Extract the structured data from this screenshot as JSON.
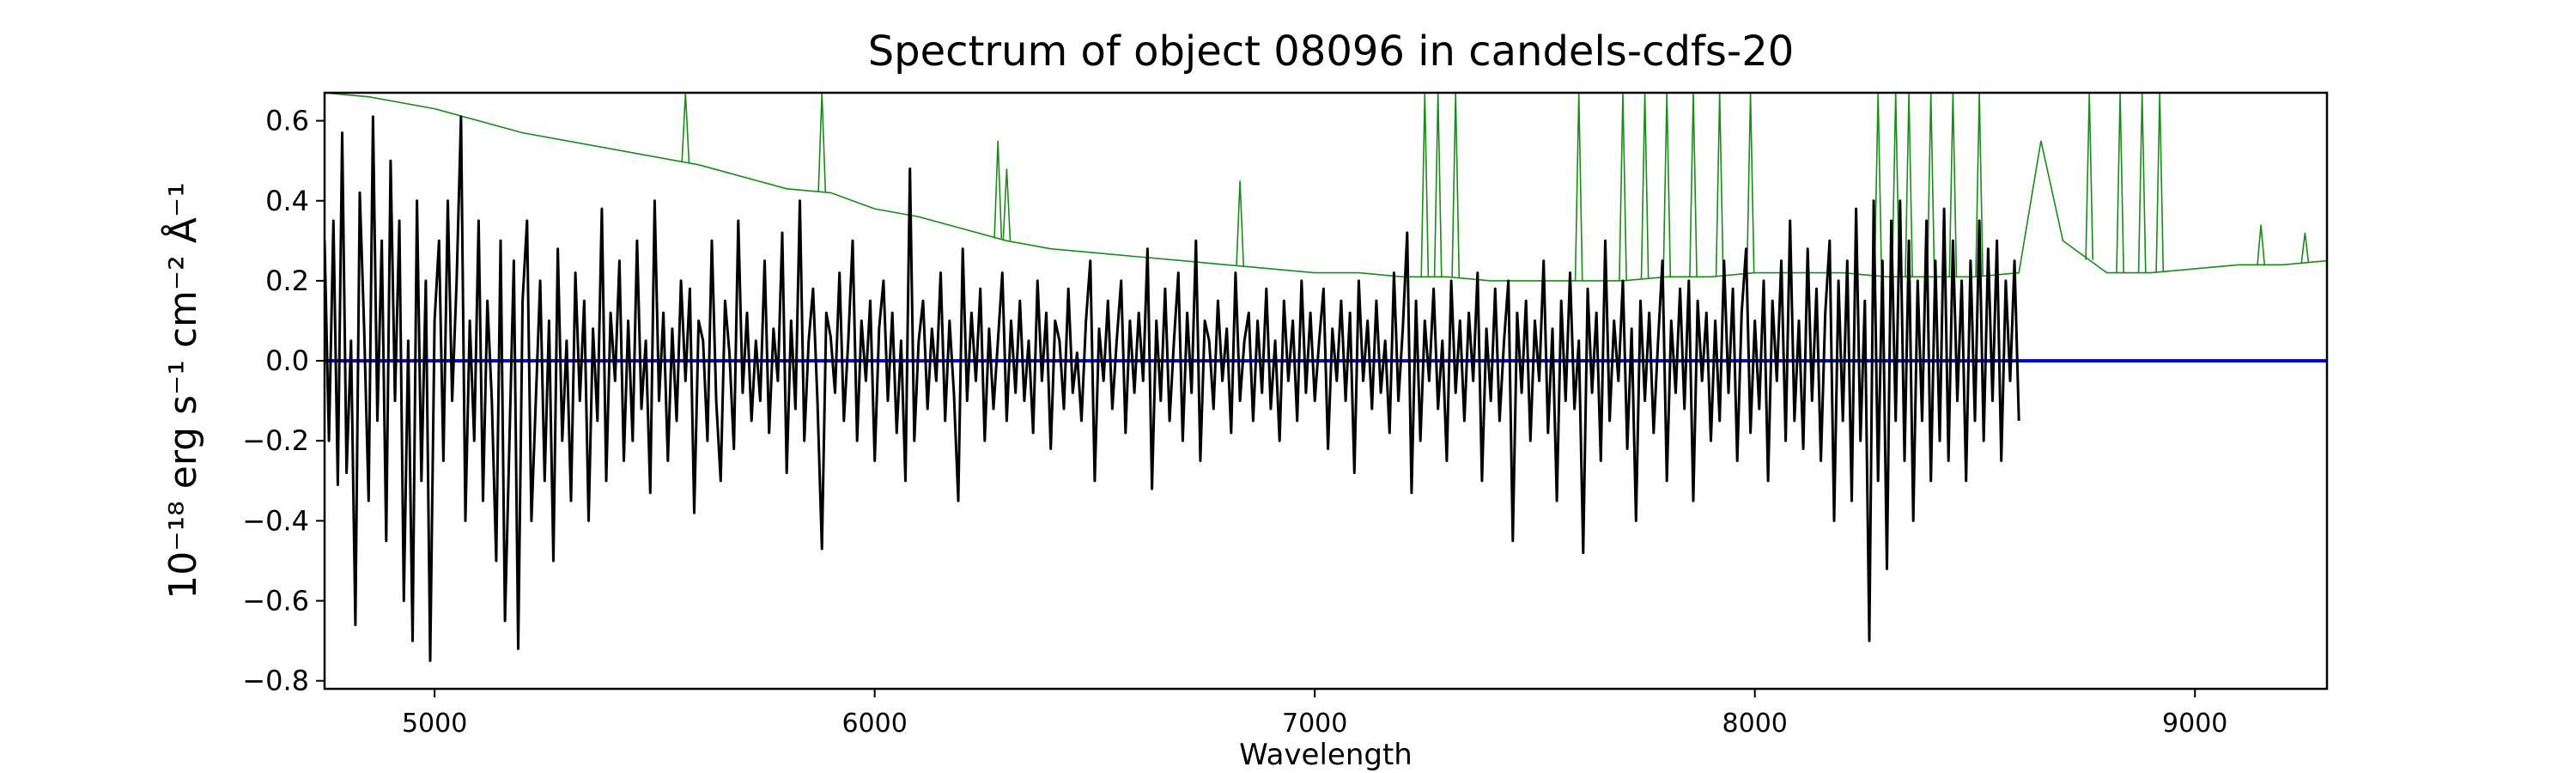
{
  "chart_data": {
    "type": "line",
    "title": "Spectrum of object 08096 in candels-cdfs-20",
    "xlabel": "Wavelength",
    "ylabel": "10⁻¹⁸ erg s⁻¹ cm⁻² Å⁻¹",
    "xlim": [
      4750,
      9300
    ],
    "ylim": [
      -0.82,
      0.67
    ],
    "x_ticks": [
      5000,
      6000,
      7000,
      8000,
      9000
    ],
    "y_ticks": [
      -0.8,
      -0.6,
      -0.4,
      -0.2,
      0.0,
      0.2,
      0.4,
      0.6
    ],
    "x_tick_labels": [
      "5000",
      "6000",
      "7000",
      "8000",
      "9000"
    ],
    "y_tick_labels": [
      "−0.8",
      "−0.6",
      "−0.4",
      "−0.2",
      "0.0",
      "0.2",
      "0.4",
      "0.6"
    ],
    "grid": false,
    "legend": "none",
    "series": [
      {
        "role": "flux",
        "color": "#000000",
        "x_start": 4750,
        "x_step": 10,
        "values": [
          0.3,
          -0.2,
          0.35,
          -0.31,
          0.57,
          -0.28,
          0.05,
          -0.66,
          0.42,
          0.08,
          -0.35,
          0.61,
          -0.15,
          0.3,
          -0.45,
          0.5,
          -0.1,
          0.35,
          -0.6,
          0.05,
          -0.7,
          0.4,
          -0.3,
          0.2,
          -0.75,
          0.1,
          0.3,
          -0.25,
          0.4,
          -0.1,
          0.2,
          0.61,
          -0.4,
          0.1,
          -0.2,
          0.35,
          -0.35,
          0.15,
          -0.1,
          -0.5,
          0.3,
          -0.65,
          -0.2,
          0.25,
          -0.72,
          0.15,
          0.35,
          -0.4,
          -0.1,
          0.2,
          -0.3,
          0.1,
          -0.5,
          0.28,
          -0.2,
          0.05,
          -0.35,
          0.22,
          -0.1,
          0.15,
          -0.4,
          0.08,
          -0.15,
          0.38,
          -0.3,
          0.12,
          -0.05,
          0.25,
          -0.25,
          0.1,
          -0.2,
          0.3,
          -0.12,
          0.05,
          -0.33,
          0.4,
          -0.1,
          0.12,
          -0.25,
          0.08,
          -0.15,
          0.2,
          -0.05,
          0.18,
          -0.38,
          0.1,
          0.05,
          -0.2,
          0.3,
          -0.1,
          -0.3,
          0.15,
          0.02,
          -0.22,
          0.35,
          -0.08,
          0.12,
          -0.15,
          0.05,
          -0.1,
          0.25,
          -0.18,
          0.08,
          -0.05,
          0.32,
          -0.28,
          0.1,
          -0.12,
          0.4,
          -0.2,
          0.05,
          0.18,
          -0.1,
          -0.47,
          0.12,
          0.06,
          -0.08,
          0.22,
          -0.15,
          0.05,
          0.3,
          -0.2,
          0.1,
          -0.05,
          0.15,
          -0.25,
          0.08,
          0.2,
          -0.1,
          0.12,
          -0.18,
          0.05,
          -0.3,
          0.48,
          -0.2,
          0.05,
          0.15,
          -0.12,
          0.08,
          -0.05,
          0.22,
          -0.15,
          0.1,
          -0.08,
          -0.35,
          0.28,
          -0.1,
          0.12,
          -0.05,
          0.18,
          -0.2,
          0.08,
          -0.12,
          0.05,
          0.22,
          -0.15,
          0.1,
          -0.08,
          0.15,
          -0.1,
          0.05,
          -0.18,
          0.2,
          -0.05,
          0.12,
          -0.22,
          0.1,
          0.05,
          -0.12,
          0.18,
          -0.08,
          0.02,
          -0.15,
          0.1,
          0.25,
          -0.3,
          0.08,
          -0.05,
          0.15,
          -0.12,
          0.05,
          0.2,
          -0.18,
          0.1,
          -0.08,
          0.12,
          -0.05,
          0.28,
          -0.32,
          0.1,
          -0.1,
          0.18,
          -0.15,
          0.05,
          0.22,
          -0.2,
          0.12,
          -0.08,
          0.3,
          -0.25,
          0.1,
          0.05,
          -0.12,
          0.15,
          -0.05,
          0.08,
          -0.18,
          0.22,
          -0.1,
          0.05,
          0.12,
          -0.15,
          0.1,
          -0.08,
          0.18,
          -0.12,
          0.05,
          -0.2,
          0.15,
          -0.05,
          0.1,
          -0.15,
          0.2,
          -0.08,
          0.12,
          -0.1,
          0.05,
          0.18,
          -0.22,
          0.08,
          -0.05,
          0.15,
          -0.1,
          0.12,
          -0.28,
          0.2,
          -0.05,
          0.1,
          -0.12,
          0.15,
          -0.08,
          0.05,
          -0.18,
          0.22,
          -0.1,
          0.08,
          0.32,
          -0.33,
          0.15,
          -0.2,
          0.1,
          -0.05,
          0.18,
          -0.12,
          0.05,
          -0.25,
          0.2,
          -0.08,
          0.1,
          -0.15,
          0.12,
          -0.05,
          0.22,
          -0.3,
          0.08,
          -0.1,
          0.18,
          -0.15,
          0.05,
          0.2,
          -0.45,
          0.12,
          -0.08,
          0.15,
          -0.2,
          0.1,
          -0.05,
          0.25,
          -0.18,
          0.08,
          -0.35,
          0.15,
          -0.1,
          0.22,
          -0.12,
          0.05,
          -0.48,
          0.18,
          -0.08,
          0.12,
          -0.25,
          0.3,
          -0.15,
          0.1,
          -0.05,
          0.2,
          -0.22,
          0.08,
          -0.4,
          0.15,
          -0.1,
          0.12,
          -0.18,
          0.05,
          0.25,
          -0.3,
          0.1,
          -0.08,
          0.18,
          -0.12,
          0.2,
          -0.35,
          0.15,
          -0.05,
          0.12,
          -0.2,
          0.1,
          -0.15,
          0.25,
          -0.08,
          0.18,
          -0.25,
          0.12,
          0.28,
          -0.18,
          0.1,
          -0.12,
          0.2,
          -0.3,
          0.15,
          -0.05,
          0.25,
          -0.2,
          0.35,
          -0.15,
          0.1,
          -0.22,
          0.28,
          -0.1,
          0.18,
          -0.25,
          0.12,
          0.3,
          -0.4,
          0.2,
          -0.15,
          0.25,
          -0.35,
          0.38,
          -0.2,
          0.15,
          -0.7,
          0.4,
          -0.3,
          0.25,
          -0.52,
          0.35,
          -0.15,
          0.4,
          -0.25,
          0.3,
          -0.4,
          0.2,
          -0.15,
          0.35,
          -0.3,
          0.25,
          -0.2,
          0.38,
          -0.25,
          0.3,
          -0.1,
          0.2,
          -0.3,
          0.25,
          -0.15,
          0.35,
          -0.2,
          0.28,
          -0.1,
          0.3,
          -0.25,
          0.2,
          -0.05,
          0.25,
          -0.15
        ],
        "min_label": "−0.75",
        "max_label": "0.61"
      },
      {
        "role": "error",
        "color": "#1a8a1a",
        "x": [
          4750,
          4850,
          5000,
          5200,
          5400,
          5550,
          5600,
          5700,
          5800,
          5900,
          6000,
          6100,
          6200,
          6300,
          6400,
          6500,
          6600,
          6700,
          6800,
          6900,
          7000,
          7100,
          7200,
          7300,
          7400,
          7500,
          7600,
          7700,
          7800,
          7900,
          8000,
          8100,
          8200,
          8300,
          8400,
          8500,
          8600,
          8650,
          8700,
          8800,
          8900,
          9000,
          9100,
          9200,
          9300
        ],
        "values": [
          0.67,
          0.66,
          0.63,
          0.57,
          0.53,
          0.5,
          0.49,
          0.46,
          0.43,
          0.42,
          0.38,
          0.36,
          0.33,
          0.3,
          0.28,
          0.27,
          0.26,
          0.25,
          0.24,
          0.23,
          0.22,
          0.22,
          0.21,
          0.21,
          0.2,
          0.2,
          0.2,
          0.2,
          0.21,
          0.21,
          0.22,
          0.22,
          0.22,
          0.21,
          0.21,
          0.21,
          0.22,
          0.55,
          0.3,
          0.22,
          0.22,
          0.23,
          0.24,
          0.24,
          0.25
        ],
        "spikes": [
          [
            5570,
            0.67
          ],
          [
            5880,
            0.67
          ],
          [
            6280,
            0.55
          ],
          [
            6300,
            0.48
          ],
          [
            6830,
            0.45
          ],
          [
            7250,
            0.67
          ],
          [
            7280,
            0.67
          ],
          [
            7320,
            0.67
          ],
          [
            7600,
            0.67
          ],
          [
            7700,
            0.67
          ],
          [
            7750,
            0.67
          ],
          [
            7800,
            0.67
          ],
          [
            7860,
            0.67
          ],
          [
            7920,
            0.67
          ],
          [
            7990,
            0.67
          ],
          [
            8280,
            0.67
          ],
          [
            8320,
            0.67
          ],
          [
            8350,
            0.67
          ],
          [
            8400,
            0.67
          ],
          [
            8450,
            0.67
          ],
          [
            8510,
            0.67
          ],
          [
            8760,
            0.67
          ],
          [
            8830,
            0.67
          ],
          [
            8880,
            0.67
          ],
          [
            8920,
            0.67
          ],
          [
            9150,
            0.34
          ],
          [
            9250,
            0.32
          ]
        ]
      },
      {
        "role": "zero",
        "color": "#0000cc",
        "x": [
          4750,
          9300
        ],
        "values": [
          0,
          0
        ]
      }
    ]
  }
}
